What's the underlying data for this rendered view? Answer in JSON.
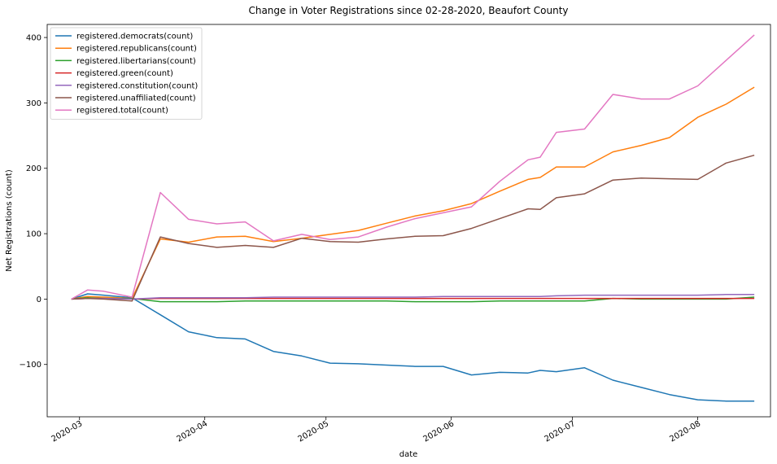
{
  "chart_data": {
    "type": "line",
    "title": "Change in Voter Registrations since 02-28-2020, Beaufort County",
    "xlabel": "date",
    "ylabel": "Net Registrations (count)",
    "xlim": [
      "2020-02-22",
      "2020-08-19"
    ],
    "ylim": [
      -180,
      420
    ],
    "x_ticks": [
      {
        "date": "2020-03-01",
        "label": "2020-03"
      },
      {
        "date": "2020-04-01",
        "label": "2020-04"
      },
      {
        "date": "2020-05-01",
        "label": "2020-05"
      },
      {
        "date": "2020-06-01",
        "label": "2020-06"
      },
      {
        "date": "2020-07-01",
        "label": "2020-07"
      },
      {
        "date": "2020-08-01",
        "label": "2020-08"
      }
    ],
    "y_ticks": [
      -100,
      0,
      100,
      200,
      300,
      400
    ],
    "grid": false,
    "legend_position": "top-left",
    "x": [
      "2020-02-28",
      "2020-03-03",
      "2020-03-07",
      "2020-03-14",
      "2020-03-21",
      "2020-03-28",
      "2020-04-04",
      "2020-04-11",
      "2020-04-18",
      "2020-04-25",
      "2020-05-02",
      "2020-05-09",
      "2020-05-16",
      "2020-05-23",
      "2020-05-30",
      "2020-06-06",
      "2020-06-13",
      "2020-06-20",
      "2020-06-23",
      "2020-06-27",
      "2020-07-04",
      "2020-07-11",
      "2020-07-18",
      "2020-07-25",
      "2020-08-01",
      "2020-08-08",
      "2020-08-15"
    ],
    "series": [
      {
        "name": "registered.democrats(count)",
        "color": "#1f77b4",
        "values": [
          0,
          8,
          6,
          2,
          -24,
          -50,
          -59,
          -61,
          -80,
          -87,
          -98,
          -99,
          -101,
          -103,
          -103,
          -116,
          -112,
          -113,
          -109,
          -111,
          -105,
          -124,
          -135,
          -146,
          -154,
          -156,
          -156
        ]
      },
      {
        "name": "registered.republicans(count)",
        "color": "#ff7f0e",
        "values": [
          0,
          4,
          3,
          1,
          92,
          87,
          95,
          96,
          88,
          93,
          99,
          105,
          116,
          127,
          135,
          146,
          165,
          183,
          186,
          202,
          202,
          225,
          235,
          247,
          278,
          298,
          324
        ]
      },
      {
        "name": "registered.libertarians(count)",
        "color": "#2ca02c",
        "values": [
          0,
          2,
          1,
          1,
          -4,
          -4,
          -4,
          -3,
          -3,
          -3,
          -3,
          -3,
          -3,
          -4,
          -4,
          -4,
          -3,
          -3,
          -3,
          -3,
          -3,
          1,
          0,
          0,
          0,
          0,
          3
        ]
      },
      {
        "name": "registered.green(count)",
        "color": "#d62728",
        "values": [
          0,
          1,
          1,
          0,
          1,
          1,
          1,
          1,
          1,
          1,
          1,
          1,
          1,
          1,
          1,
          1,
          1,
          1,
          1,
          1,
          1,
          1,
          1,
          1,
          1,
          1,
          1
        ]
      },
      {
        "name": "registered.constitution(count)",
        "color": "#9467bd",
        "values": [
          0,
          1,
          1,
          0,
          2,
          2,
          2,
          2,
          3,
          3,
          3,
          3,
          3,
          3,
          4,
          4,
          4,
          4,
          4,
          5,
          6,
          6,
          6,
          6,
          6,
          7,
          7
        ]
      },
      {
        "name": "registered.unaffiliated(count)",
        "color": "#8c564b",
        "values": [
          0,
          1,
          0,
          -3,
          95,
          85,
          79,
          82,
          79,
          93,
          88,
          87,
          92,
          96,
          97,
          108,
          123,
          138,
          137,
          155,
          161,
          182,
          185,
          184,
          183,
          208,
          220
        ]
      },
      {
        "name": "registered.total(count)",
        "color": "#e377c2",
        "values": [
          0,
          14,
          12,
          3,
          163,
          122,
          115,
          118,
          89,
          99,
          91,
          95,
          110,
          123,
          132,
          141,
          180,
          213,
          217,
          255,
          260,
          313,
          306,
          306,
          326,
          365,
          404
        ]
      }
    ]
  }
}
